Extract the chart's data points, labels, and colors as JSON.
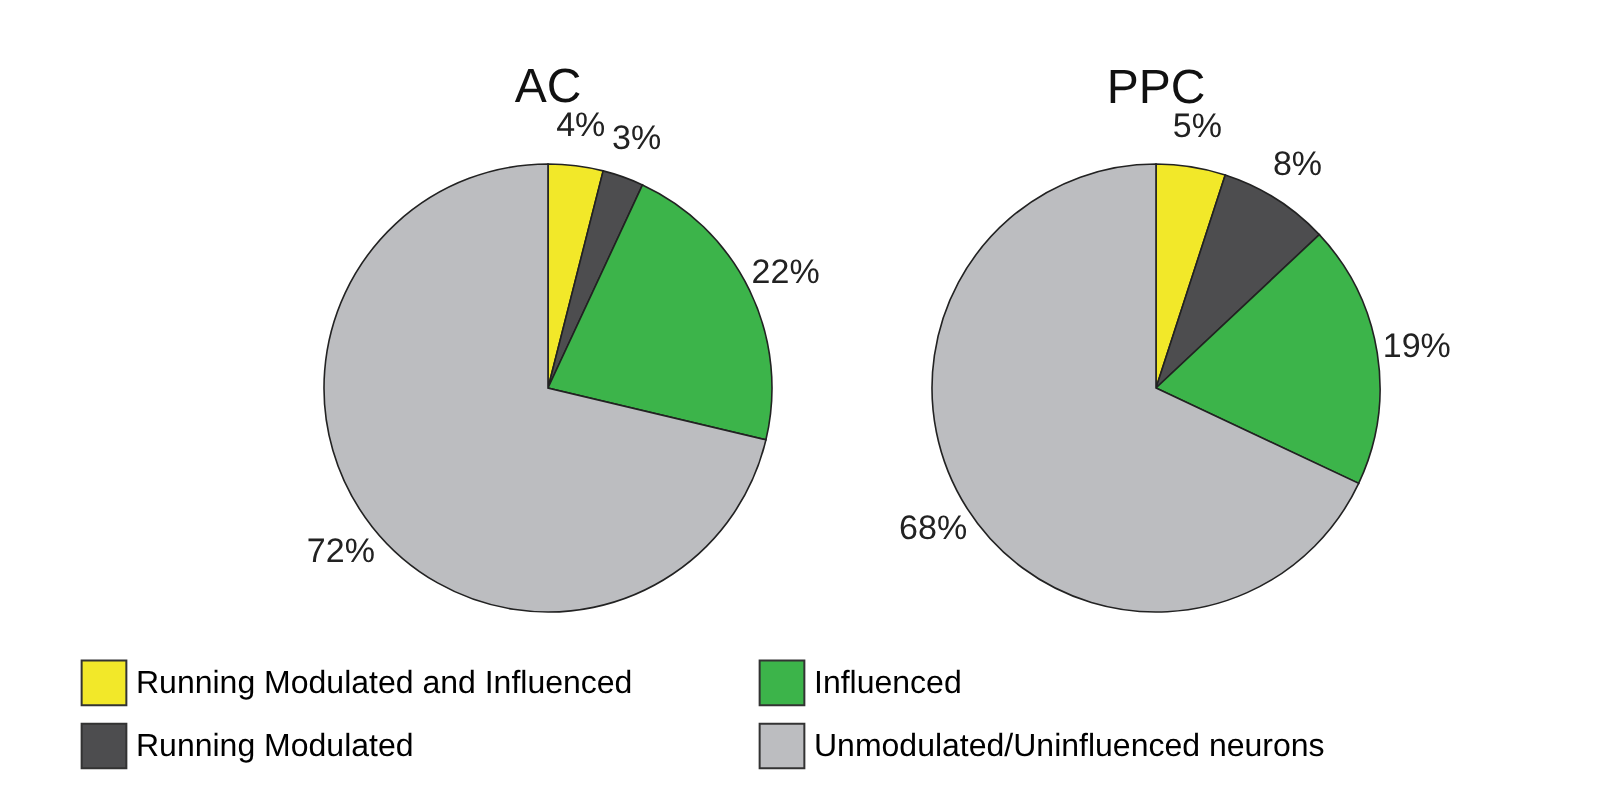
{
  "chart_data": [
    {
      "type": "pie",
      "title": "AC",
      "categories": [
        "Running Modulated and Influenced",
        "Running Modulated",
        "Influenced",
        "Unmodulated/Uninfluenced neurons"
      ],
      "values": [
        4,
        3,
        22,
        72
      ],
      "colors": [
        "#f2e829",
        "#4d4d4f",
        "#3cb44a",
        "#bcbdc0"
      ],
      "value_labels": [
        "4%",
        "3%",
        "22%",
        "72%"
      ],
      "legend": "bottom"
    },
    {
      "type": "pie",
      "title": "PPC",
      "categories": [
        null,
        null,
        null,
        null
      ],
      "values": [
        5,
        8,
        19,
        68
      ],
      "colors": [
        "#f2e829",
        "#4d4d4f",
        "#3cb44a",
        "#bcbdc0"
      ],
      "value_labels": [
        "5%",
        "8%",
        "19%",
        "68%"
      ]
    }
  ]
}
